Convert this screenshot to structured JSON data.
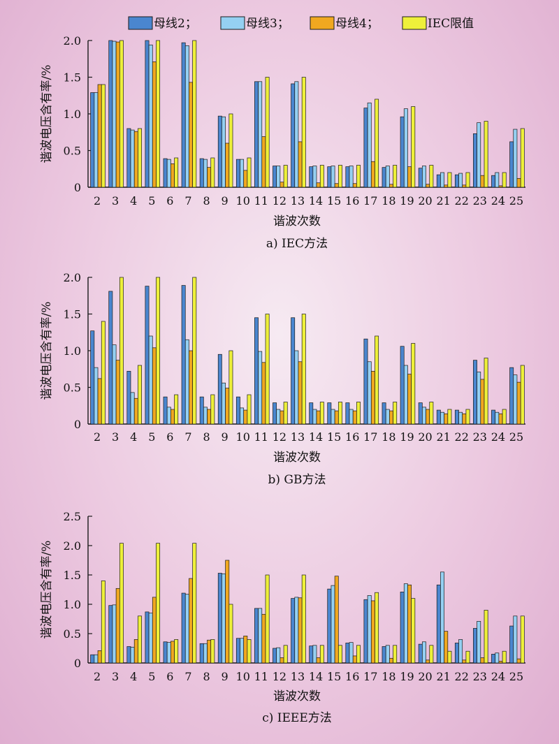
{
  "legend": [
    "母线2；",
    "母线3；",
    "母线4；",
    "IEC限值"
  ],
  "colors": {
    "bus2": "#4a86cf",
    "bus3": "#95d0f2",
    "bus4": "#f0a820",
    "limit": "#eef03a",
    "stroke": "#1a1a1a"
  },
  "chart_data": [
    {
      "type": "bar",
      "caption": "a) IEC方法",
      "xlabel": "谐波次数",
      "ylabel": "谐波电压含有率/%",
      "ylim": [
        0,
        2.0
      ],
      "yticks": [
        "0",
        "0.5",
        "1.0",
        "1.5",
        "2.0"
      ],
      "categories": [
        "2",
        "3",
        "4",
        "5",
        "6",
        "7",
        "8",
        "9",
        "10",
        "11",
        "12",
        "13",
        "14",
        "15",
        "16",
        "17",
        "18",
        "19",
        "20",
        "21",
        "22",
        "23",
        "24",
        "25"
      ],
      "series": [
        {
          "name": "母线2",
          "values": [
            1.29,
            2.0,
            0.8,
            2.0,
            0.39,
            1.97,
            0.39,
            0.97,
            0.38,
            1.44,
            0.29,
            1.41,
            0.28,
            0.28,
            0.28,
            1.08,
            0.27,
            0.96,
            0.26,
            0.17,
            0.17,
            0.73,
            0.16,
            0.62
          ]
        },
        {
          "name": "母线3",
          "values": [
            1.29,
            1.99,
            0.78,
            1.94,
            0.38,
            1.93,
            0.38,
            0.96,
            0.38,
            1.44,
            0.29,
            1.44,
            0.29,
            0.29,
            0.29,
            1.15,
            0.29,
            1.07,
            0.29,
            0.2,
            0.19,
            0.88,
            0.2,
            0.79
          ]
        },
        {
          "name": "母线4",
          "values": [
            1.4,
            1.98,
            0.76,
            1.71,
            0.32,
            1.43,
            0.27,
            0.6,
            0.23,
            0.69,
            0.07,
            0.62,
            0.06,
            0.05,
            0.05,
            0.35,
            0.04,
            0.28,
            0.04,
            0.03,
            0.03,
            0.16,
            0.02,
            0.12
          ]
        },
        {
          "name": "IEC限值",
          "values": [
            1.4,
            2.0,
            0.8,
            2.0,
            0.4,
            2.0,
            0.4,
            1.0,
            0.4,
            1.5,
            0.3,
            1.5,
            0.3,
            0.3,
            0.3,
            1.2,
            0.3,
            1.1,
            0.3,
            0.2,
            0.2,
            0.9,
            0.2,
            0.8
          ]
        }
      ]
    },
    {
      "type": "bar",
      "caption": "b) GB方法",
      "xlabel": "谐波次数",
      "ylabel": "谐波电压含有率/%",
      "ylim": [
        0,
        2.0
      ],
      "yticks": [
        "0",
        "0.5",
        "1.0",
        "1.5",
        "2.0"
      ],
      "categories": [
        "2",
        "3",
        "4",
        "5",
        "6",
        "7",
        "8",
        "9",
        "10",
        "11",
        "12",
        "13",
        "14",
        "15",
        "16",
        "17",
        "18",
        "19",
        "20",
        "21",
        "22",
        "23",
        "24",
        "25"
      ],
      "series": [
        {
          "name": "母线2",
          "values": [
            1.27,
            1.81,
            0.72,
            1.88,
            0.37,
            1.89,
            0.37,
            0.95,
            0.37,
            1.45,
            0.29,
            1.45,
            0.29,
            0.29,
            0.29,
            1.16,
            0.29,
            1.06,
            0.29,
            0.19,
            0.19,
            0.87,
            0.19,
            0.77
          ]
        },
        {
          "name": "母线3",
          "values": [
            0.77,
            1.08,
            0.43,
            1.2,
            0.23,
            1.15,
            0.23,
            0.56,
            0.22,
            0.99,
            0.2,
            1.0,
            0.2,
            0.2,
            0.2,
            0.85,
            0.2,
            0.8,
            0.23,
            0.16,
            0.16,
            0.71,
            0.16,
            0.67
          ]
        },
        {
          "name": "母线4",
          "values": [
            0.62,
            0.87,
            0.35,
            1.04,
            0.2,
            1.0,
            0.2,
            0.49,
            0.19,
            0.84,
            0.18,
            0.85,
            0.18,
            0.18,
            0.18,
            0.72,
            0.18,
            0.68,
            0.2,
            0.14,
            0.14,
            0.61,
            0.14,
            0.57
          ]
        },
        {
          "name": "IEC限值",
          "values": [
            1.4,
            2.0,
            0.8,
            2.0,
            0.4,
            2.0,
            0.4,
            1.0,
            0.4,
            1.5,
            0.3,
            1.5,
            0.3,
            0.3,
            0.3,
            1.2,
            0.3,
            1.1,
            0.3,
            0.2,
            0.2,
            0.9,
            0.2,
            0.8
          ]
        }
      ]
    },
    {
      "type": "bar",
      "caption": "c) IEEE方法",
      "xlabel": "谐波次数",
      "ylabel": "谐波电压含有率/%",
      "ylim": [
        0,
        2.5
      ],
      "yticks": [
        "0",
        "0.5",
        "1.0",
        "1.5",
        "2.0",
        "2.5"
      ],
      "categories": [
        "2",
        "3",
        "4",
        "5",
        "6",
        "7",
        "8",
        "9",
        "10",
        "11",
        "12",
        "13",
        "14",
        "15",
        "16",
        "17",
        "18",
        "19",
        "20",
        "21",
        "22",
        "23",
        "24",
        "25"
      ],
      "series": [
        {
          "name": "母线2",
          "values": [
            0.14,
            0.98,
            0.28,
            0.87,
            0.36,
            1.19,
            0.33,
            1.53,
            0.42,
            0.93,
            0.25,
            1.1,
            0.29,
            1.26,
            0.34,
            1.08,
            0.28,
            1.21,
            0.32,
            1.33,
            0.34,
            0.59,
            0.15,
            0.63
          ]
        },
        {
          "name": "母线3",
          "values": [
            0.14,
            0.99,
            0.27,
            0.85,
            0.35,
            1.17,
            0.33,
            1.52,
            0.42,
            0.93,
            0.26,
            1.12,
            0.3,
            1.32,
            0.35,
            1.15,
            0.3,
            1.35,
            0.36,
            1.55,
            0.4,
            0.71,
            0.17,
            0.8
          ]
        },
        {
          "name": "母线4",
          "values": [
            0.21,
            1.27,
            0.4,
            1.12,
            0.37,
            1.44,
            0.39,
            1.75,
            0.46,
            0.83,
            0.09,
            1.11,
            0.09,
            1.48,
            0.12,
            1.06,
            0.08,
            1.33,
            0.05,
            0.54,
            0.05,
            0.09,
            0.03,
            0.07
          ]
        },
        {
          "name": "IEC限值",
          "values": [
            1.4,
            2.04,
            0.8,
            2.04,
            0.4,
            2.04,
            0.4,
            1.0,
            0.4,
            1.5,
            0.3,
            1.5,
            0.3,
            0.3,
            0.3,
            1.2,
            0.3,
            1.1,
            0.3,
            0.2,
            0.2,
            0.9,
            0.2,
            0.8
          ]
        }
      ]
    }
  ]
}
